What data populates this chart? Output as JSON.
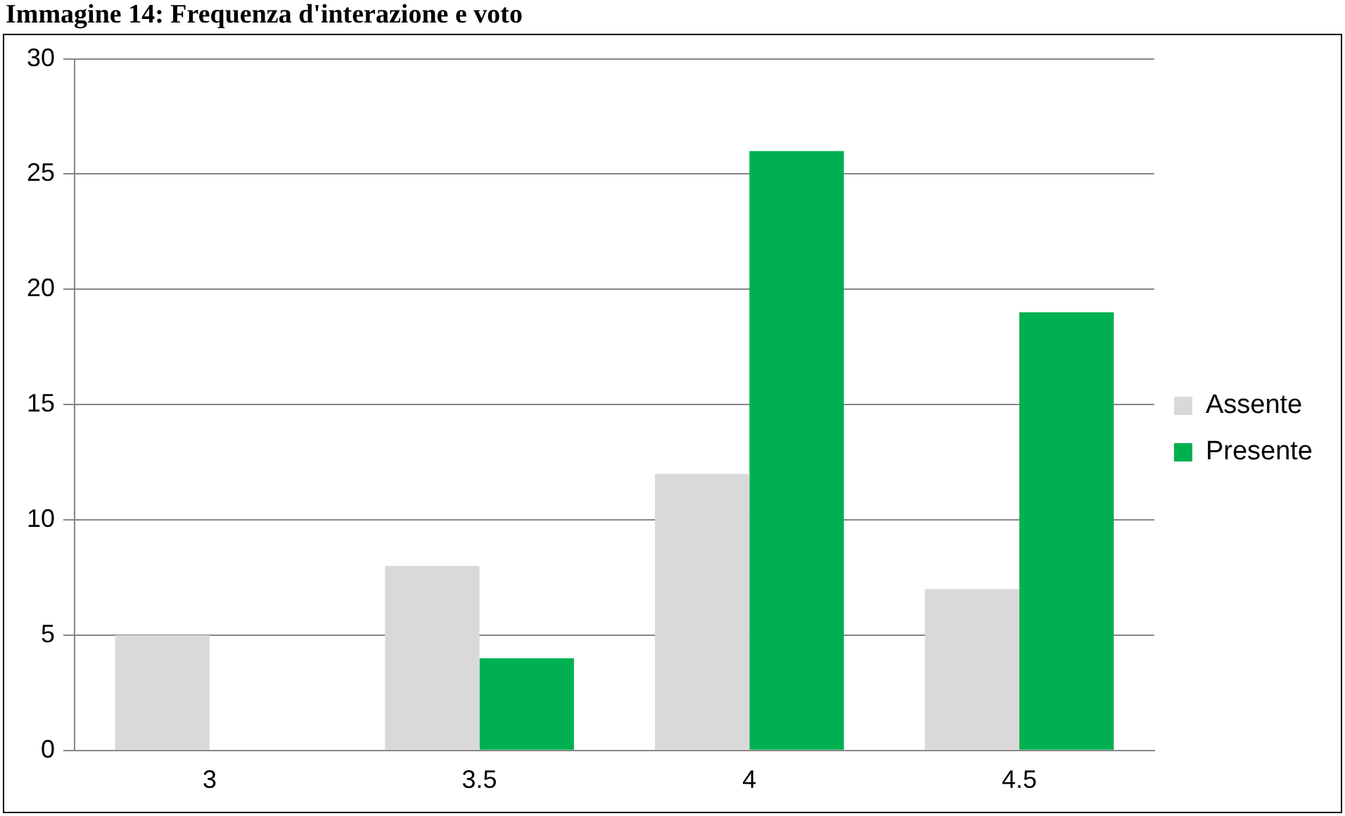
{
  "chart_data": {
    "type": "bar",
    "title": "Immagine 14: Frequenza d'interazione e voto",
    "categories": [
      "3",
      "3.5",
      "4",
      "4.5"
    ],
    "series": [
      {
        "name": "Assente",
        "color": "#d9d9d9",
        "values": [
          5,
          8,
          12,
          7
        ]
      },
      {
        "name": "Presente",
        "color": "#00b050",
        "values": [
          0,
          4,
          26,
          19
        ]
      }
    ],
    "ylim": [
      0,
      30
    ],
    "yticks": [
      0,
      5,
      10,
      15,
      20,
      25,
      30
    ],
    "grid": "y",
    "legend": "right"
  }
}
